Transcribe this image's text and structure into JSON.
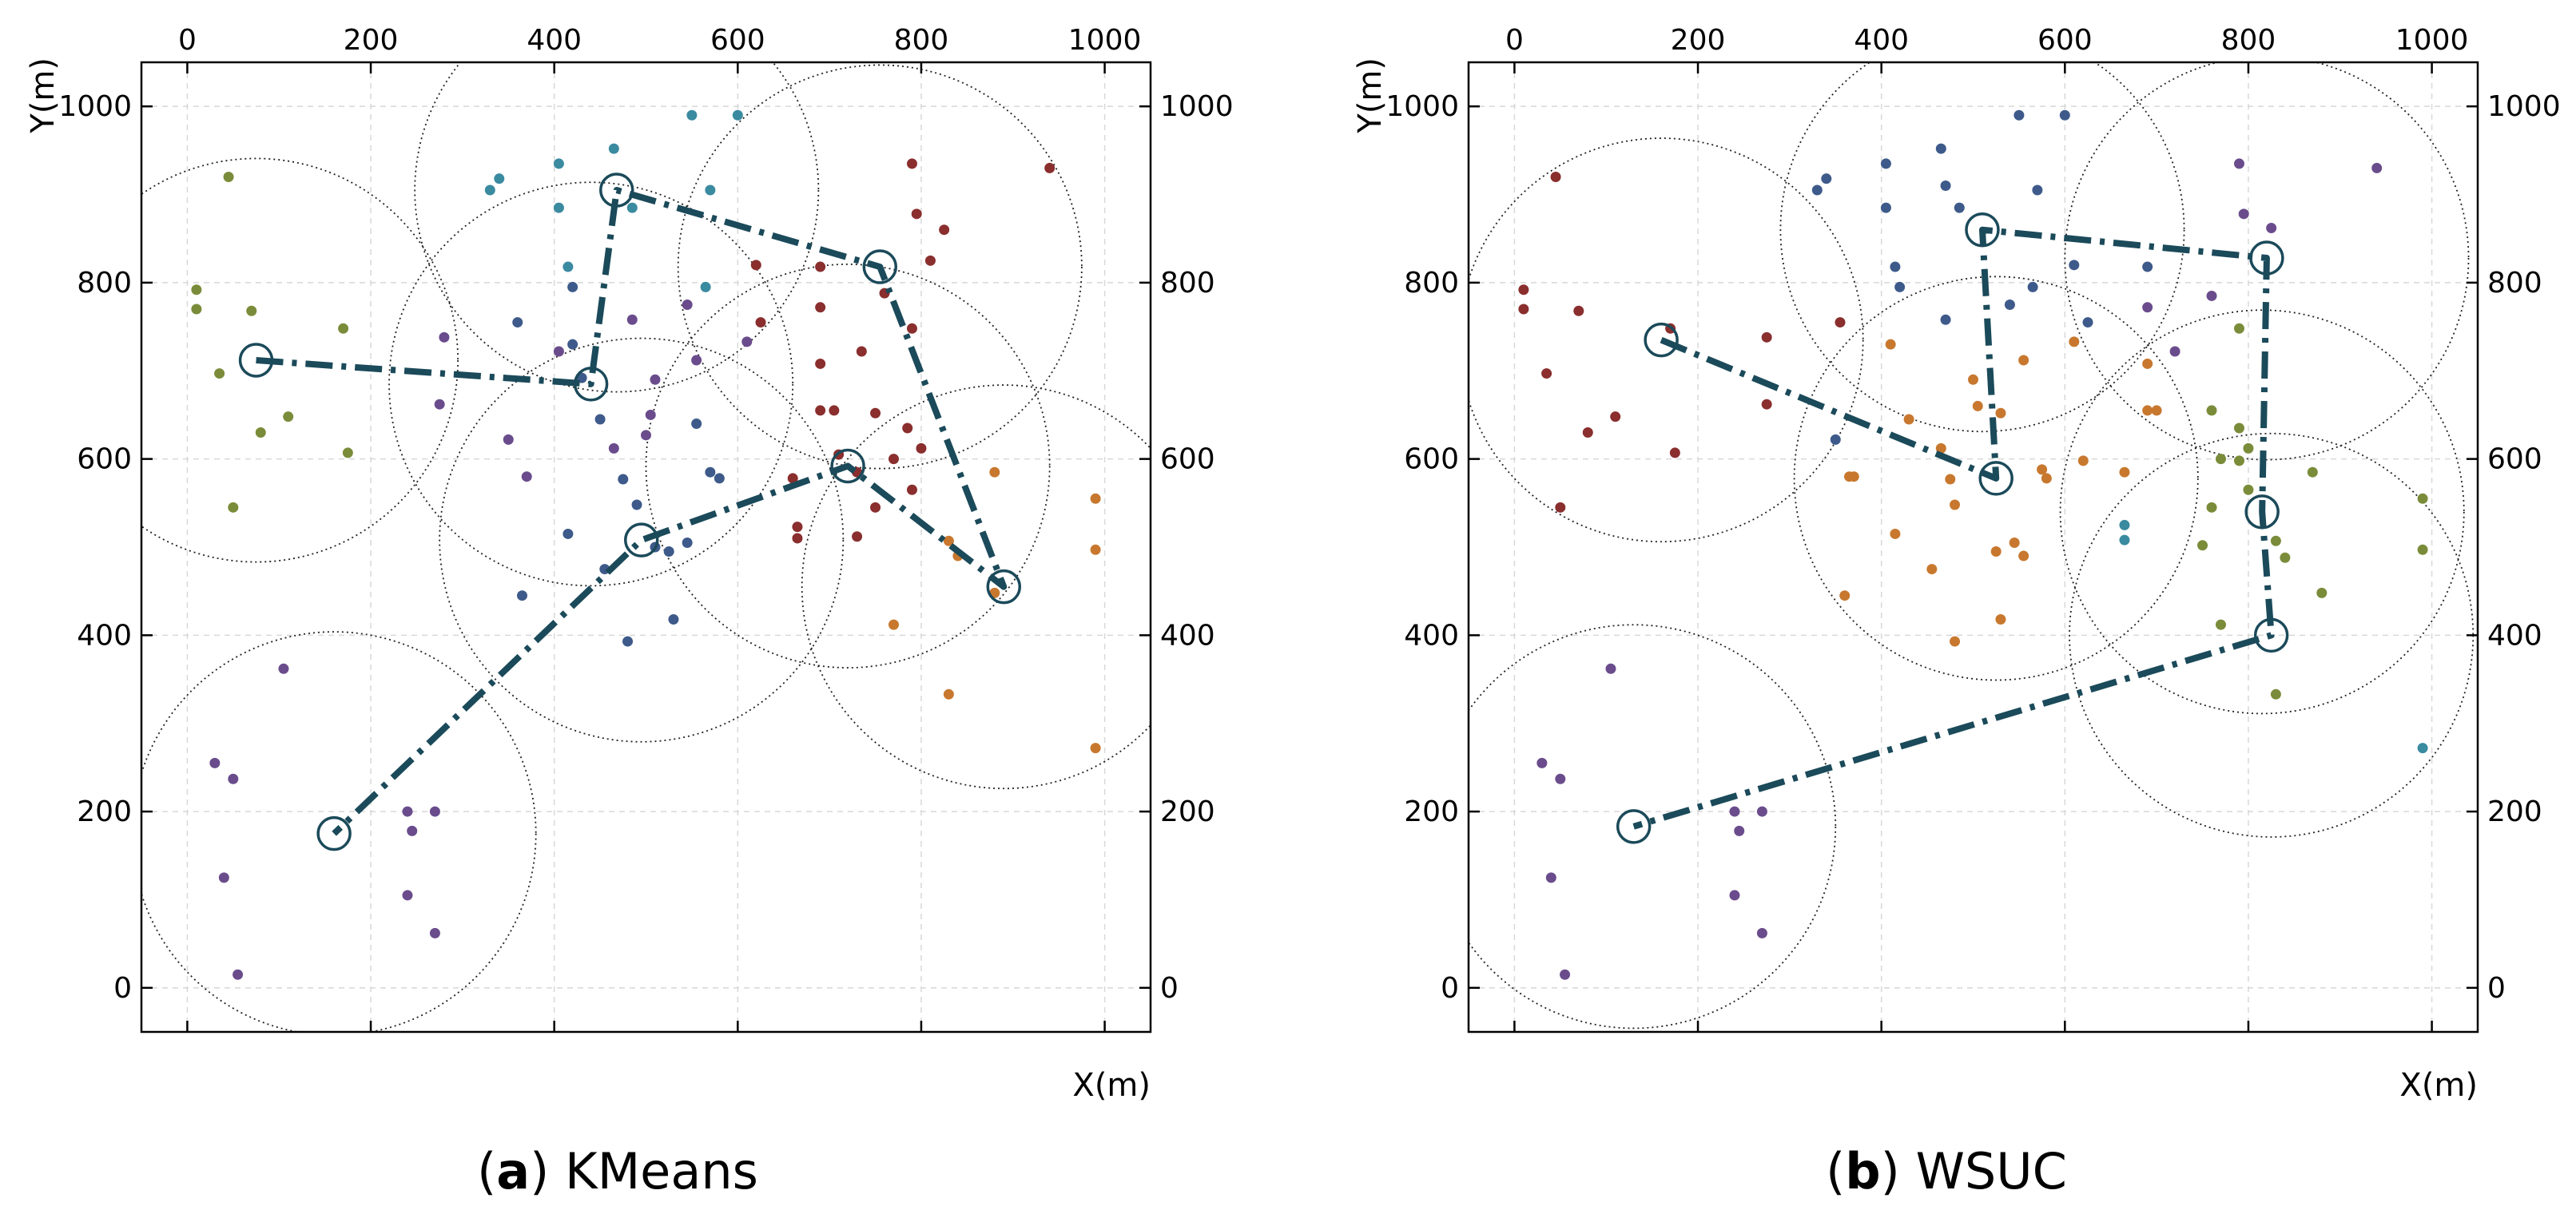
{
  "colors": {
    "path": "#1b4a5a",
    "purple": "#6a4c8c",
    "olive": "#7a8c3a",
    "blue": "#3d5a8a",
    "teal": "#3a8aa0",
    "red": "#8a2e2e",
    "orange": "#c8782e",
    "grid": "#d8d8d8"
  },
  "chart_data": [
    {
      "type": "scatter",
      "caption_label": "a",
      "caption_text": " KMeans",
      "xlabel": "X(m)",
      "ylabel": "Y(m)",
      "xlim": [
        -50,
        1050
      ],
      "ylim": [
        -50,
        1050
      ],
      "ticks": [
        0,
        200,
        400,
        600,
        800,
        1000
      ],
      "circle_radius": 220,
      "centers": [
        [
          75,
          712
        ],
        [
          440,
          685
        ],
        [
          468,
          905
        ],
        [
          755,
          818
        ],
        [
          720,
          592
        ],
        [
          495,
          508
        ],
        [
          890,
          455
        ],
        [
          160,
          175
        ]
      ],
      "path": [
        [
          75,
          712
        ],
        [
          440,
          685
        ],
        [
          468,
          905
        ],
        [
          755,
          818
        ],
        [
          890,
          455
        ],
        [
          720,
          592
        ],
        [
          495,
          508
        ],
        [
          160,
          175
        ]
      ],
      "series": [
        {
          "color_key": "olive",
          "points": [
            [
              45,
              920
            ],
            [
              10,
              792
            ],
            [
              10,
              770
            ],
            [
              70,
              768
            ],
            [
              170,
              748
            ],
            [
              35,
              697
            ],
            [
              80,
              630
            ],
            [
              110,
              648
            ],
            [
              175,
              607
            ],
            [
              50,
              545
            ]
          ]
        },
        {
          "color_key": "teal",
          "points": [
            [
              550,
              990
            ],
            [
              600,
              990
            ],
            [
              465,
              952
            ],
            [
              405,
              935
            ],
            [
              340,
              918
            ],
            [
              330,
              905
            ],
            [
              570,
              905
            ],
            [
              405,
              885
            ],
            [
              485,
              885
            ],
            [
              415,
              818
            ],
            [
              565,
              795
            ]
          ]
        },
        {
          "color_key": "blue",
          "points": [
            [
              360,
              755
            ],
            [
              420,
              795
            ],
            [
              420,
              730
            ],
            [
              430,
              692
            ],
            [
              450,
              645
            ],
            [
              475,
              577
            ],
            [
              490,
              548
            ],
            [
              555,
              640
            ],
            [
              570,
              585
            ],
            [
              580,
              578
            ],
            [
              510,
              500
            ],
            [
              545,
              505
            ],
            [
              525,
              495
            ],
            [
              415,
              515
            ],
            [
              365,
              445
            ],
            [
              455,
              475
            ],
            [
              480,
              393
            ],
            [
              530,
              418
            ]
          ]
        },
        {
          "color_key": "purple",
          "points": [
            [
              280,
              738
            ],
            [
              485,
              758
            ],
            [
              510,
              690
            ],
            [
              465,
              612
            ],
            [
              505,
              650
            ],
            [
              500,
              627
            ],
            [
              555,
              712
            ],
            [
              610,
              733
            ],
            [
              545,
              775
            ],
            [
              350,
              622
            ],
            [
              370,
              580
            ],
            [
              275,
              662
            ],
            [
              405,
              722
            ]
          ]
        },
        {
          "color_key": "red",
          "points": [
            [
              790,
              935
            ],
            [
              940,
              930
            ],
            [
              825,
              860
            ],
            [
              795,
              878
            ],
            [
              690,
              818
            ],
            [
              810,
              825
            ],
            [
              760,
              788
            ],
            [
              620,
              820
            ],
            [
              690,
              772
            ],
            [
              625,
              755
            ],
            [
              735,
              722
            ],
            [
              790,
              748
            ],
            [
              690,
              708
            ],
            [
              750,
              652
            ],
            [
              690,
              655
            ],
            [
              705,
              655
            ],
            [
              785,
              635
            ],
            [
              800,
              612
            ],
            [
              770,
              600
            ],
            [
              730,
              585
            ],
            [
              660,
              578
            ],
            [
              710,
              605
            ],
            [
              790,
              565
            ],
            [
              750,
              545
            ],
            [
              730,
              512
            ],
            [
              665,
              510
            ],
            [
              665,
              523
            ]
          ]
        },
        {
          "color_key": "orange",
          "points": [
            [
              990,
              555
            ],
            [
              880,
              585
            ],
            [
              990,
              497
            ],
            [
              830,
              507
            ],
            [
              840,
              490
            ],
            [
              880,
              448
            ],
            [
              770,
              412
            ],
            [
              830,
              333
            ],
            [
              990,
              272
            ]
          ]
        },
        {
          "color_key": "purple",
          "points": [
            [
              105,
              362
            ],
            [
              30,
              255
            ],
            [
              50,
              237
            ],
            [
              240,
              200
            ],
            [
              270,
              200
            ],
            [
              245,
              178
            ],
            [
              40,
              125
            ],
            [
              240,
              105
            ],
            [
              270,
              62
            ],
            [
              55,
              15
            ]
          ]
        }
      ]
    },
    {
      "type": "scatter",
      "caption_label": "b",
      "caption_text": " WSUC",
      "xlabel": "X(m)",
      "ylabel": "Y(m)",
      "xlim": [
        -50,
        1050
      ],
      "ylim": [
        -50,
        1050
      ],
      "ticks": [
        0,
        200,
        400,
        600,
        800,
        1000
      ],
      "circle_radius": 220,
      "centers": [
        [
          160,
          735
        ],
        [
          510,
          860
        ],
        [
          820,
          828
        ],
        [
          525,
          578
        ],
        [
          815,
          540
        ],
        [
          825,
          400
        ],
        [
          130,
          183
        ]
      ],
      "path": [
        [
          160,
          735
        ],
        [
          525,
          578
        ],
        [
          510,
          860
        ],
        [
          820,
          828
        ],
        [
          815,
          540
        ],
        [
          825,
          400
        ],
        [
          130,
          183
        ]
      ],
      "series": [
        {
          "color_key": "red",
          "points": [
            [
              45,
              920
            ],
            [
              10,
              792
            ],
            [
              10,
              770
            ],
            [
              70,
              768
            ],
            [
              170,
              748
            ],
            [
              35,
              697
            ],
            [
              80,
              630
            ],
            [
              110,
              648
            ],
            [
              175,
              607
            ],
            [
              50,
              545
            ],
            [
              275,
              738
            ],
            [
              275,
              662
            ],
            [
              355,
              755
            ]
          ]
        },
        {
          "color_key": "blue",
          "points": [
            [
              550,
              990
            ],
            [
              600,
              990
            ],
            [
              465,
              952
            ],
            [
              405,
              935
            ],
            [
              340,
              918
            ],
            [
              330,
              905
            ],
            [
              470,
              910
            ],
            [
              570,
              905
            ],
            [
              405,
              885
            ],
            [
              485,
              885
            ],
            [
              415,
              818
            ],
            [
              565,
              795
            ],
            [
              610,
              820
            ],
            [
              690,
              818
            ],
            [
              420,
              795
            ],
            [
              540,
              775
            ],
            [
              625,
              755
            ],
            [
              470,
              758
            ],
            [
              350,
              622
            ]
          ]
        },
        {
          "color_key": "purple",
          "points": [
            [
              790,
              935
            ],
            [
              940,
              930
            ],
            [
              825,
              862
            ],
            [
              795,
              878
            ],
            [
              690,
              772
            ],
            [
              760,
              785
            ],
            [
              720,
              722
            ],
            [
              105,
              362
            ],
            [
              30,
              255
            ],
            [
              50,
              237
            ],
            [
              240,
              200
            ],
            [
              270,
              200
            ],
            [
              245,
              178
            ],
            [
              40,
              125
            ],
            [
              240,
              105
            ],
            [
              270,
              62
            ],
            [
              55,
              15
            ]
          ]
        },
        {
          "color_key": "orange",
          "points": [
            [
              410,
              730
            ],
            [
              500,
              690
            ],
            [
              555,
              712
            ],
            [
              610,
              733
            ],
            [
              505,
              660
            ],
            [
              365,
              580
            ],
            [
              370,
              580
            ],
            [
              430,
              645
            ],
            [
              465,
              612
            ],
            [
              530,
              652
            ],
            [
              575,
              588
            ],
            [
              580,
              578
            ],
            [
              620,
              598
            ],
            [
              665,
              585
            ],
            [
              700,
              655
            ],
            [
              690,
              708
            ],
            [
              480,
              548
            ],
            [
              475,
              577
            ],
            [
              545,
              505
            ],
            [
              525,
              495
            ],
            [
              555,
              490
            ],
            [
              415,
              515
            ],
            [
              455,
              475
            ],
            [
              360,
              445
            ],
            [
              480,
              393
            ],
            [
              530,
              418
            ],
            [
              690,
              655
            ]
          ]
        },
        {
          "color_key": "olive",
          "points": [
            [
              790,
              748
            ],
            [
              760,
              655
            ],
            [
              790,
              635
            ],
            [
              800,
              612
            ],
            [
              770,
              600
            ],
            [
              790,
              598
            ],
            [
              800,
              565
            ],
            [
              760,
              545
            ],
            [
              870,
              585
            ],
            [
              750,
              502
            ],
            [
              830,
              507
            ],
            [
              840,
              488
            ],
            [
              880,
              448
            ],
            [
              770,
              412
            ],
            [
              830,
              333
            ],
            [
              990,
              555
            ],
            [
              990,
              497
            ]
          ]
        },
        {
          "color_key": "teal",
          "points": [
            [
              665,
              525
            ],
            [
              665,
              508
            ],
            [
              990,
              272
            ]
          ]
        }
      ]
    }
  ]
}
